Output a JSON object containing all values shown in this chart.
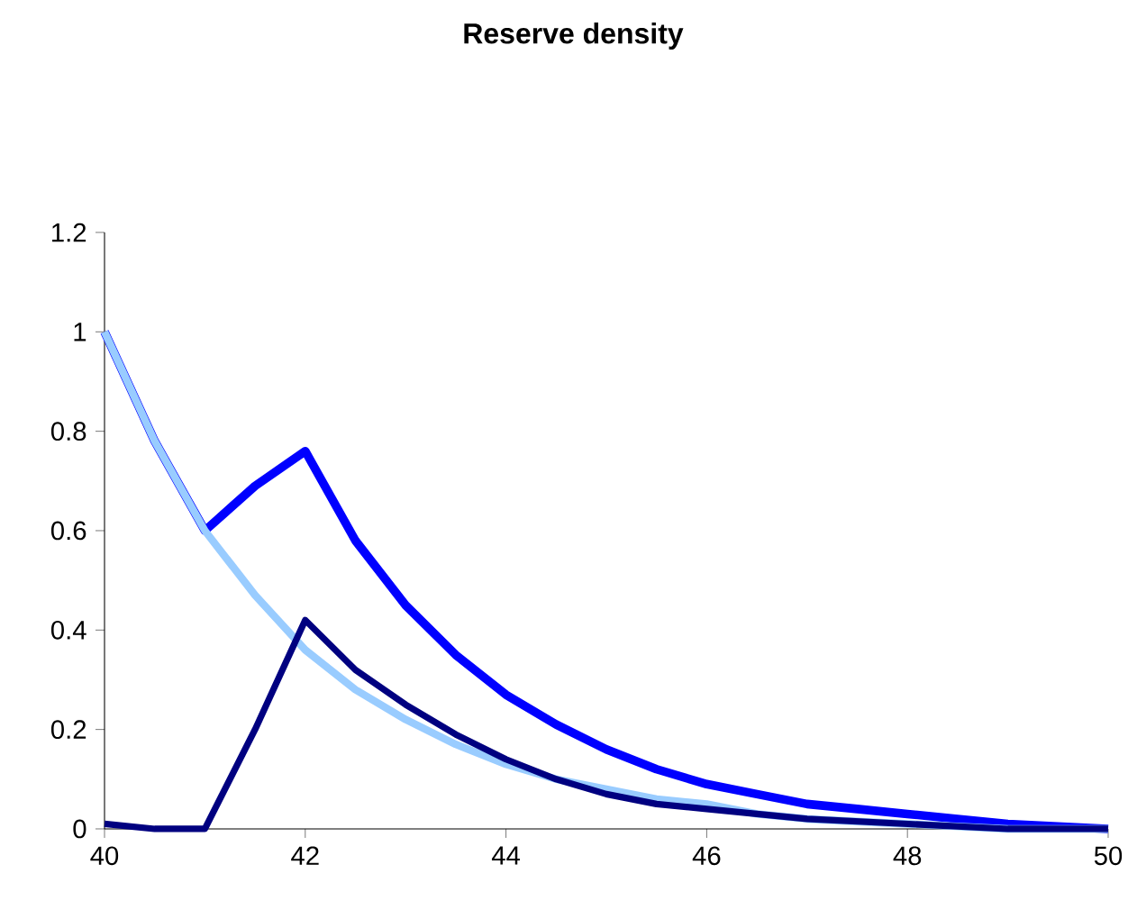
{
  "chart_data": {
    "type": "line",
    "title": "Reserve density",
    "xlim": [
      40,
      50
    ],
    "ylim": [
      0,
      1.2
    ],
    "xticks": [
      40,
      42,
      44,
      46,
      48,
      50
    ],
    "yticks": [
      0,
      0.2,
      0.4,
      0.6,
      0.8,
      1,
      1.2
    ],
    "series": [
      {
        "color": "#0000ff",
        "x": [
          40,
          40.5,
          41,
          41.5,
          42,
          42.5,
          43,
          43.5,
          44,
          44.5,
          45,
          45.5,
          46,
          46.5,
          47,
          47.5,
          48,
          48.5,
          49,
          50
        ],
        "values": [
          1,
          0.78,
          0.6,
          0.69,
          0.76,
          0.58,
          0.45,
          0.35,
          0.27,
          0.21,
          0.16,
          0.12,
          0.09,
          0.07,
          0.05,
          0.04,
          0.03,
          0.02,
          0.01,
          0
        ]
      },
      {
        "color": "#99ccff",
        "x": [
          40,
          40.5,
          41,
          41.5,
          42,
          42.5,
          43,
          43.5,
          44,
          44.5,
          45,
          45.5,
          46,
          46.5,
          47,
          48,
          49,
          50
        ],
        "values": [
          1,
          0.78,
          0.6,
          0.47,
          0.36,
          0.28,
          0.22,
          0.17,
          0.13,
          0.1,
          0.08,
          0.06,
          0.05,
          0.03,
          0.02,
          0.01,
          0,
          0
        ]
      },
      {
        "color": "#000080",
        "x": [
          40,
          40.5,
          41,
          41.5,
          42,
          42.5,
          43,
          43.5,
          44,
          44.5,
          45,
          45.5,
          46,
          46.5,
          47,
          48,
          49,
          50
        ],
        "values": [
          0.01,
          0,
          0,
          0.2,
          0.42,
          0.32,
          0.25,
          0.19,
          0.14,
          0.1,
          0.07,
          0.05,
          0.04,
          0.03,
          0.02,
          0.01,
          0,
          0
        ]
      }
    ]
  }
}
